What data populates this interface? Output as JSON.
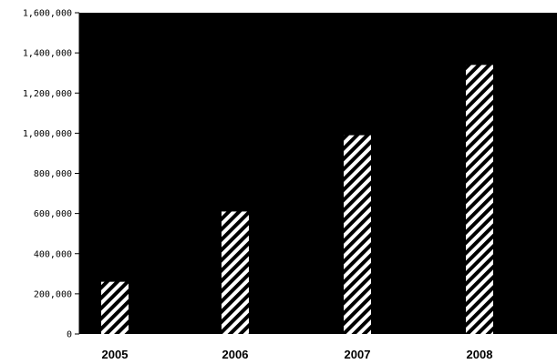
{
  "chart_data": {
    "type": "bar",
    "categories": [
      "2005",
      "2006",
      "2007",
      "2008"
    ],
    "values": [
      260000,
      610000,
      990000,
      1340000
    ],
    "ylim": [
      0,
      1600000
    ],
    "y_ticks": [
      0,
      200000,
      400000,
      600000,
      800000,
      1000000,
      1200000,
      1400000,
      1600000
    ],
    "y_tick_labels": [
      "0",
      "200,000",
      "400,000",
      "600,000",
      "800,000",
      "1,000,000",
      "1,200,000",
      "1,400,000",
      "1,600,000"
    ],
    "grid": false,
    "plot_background": "#000000",
    "bar_pattern": "diagonal white/black hatch"
  },
  "colors": {
    "plot_background": "#000000",
    "bar_hatch_light": "#ffffff",
    "bar_hatch_dark": "#000000",
    "text": "#000000"
  }
}
